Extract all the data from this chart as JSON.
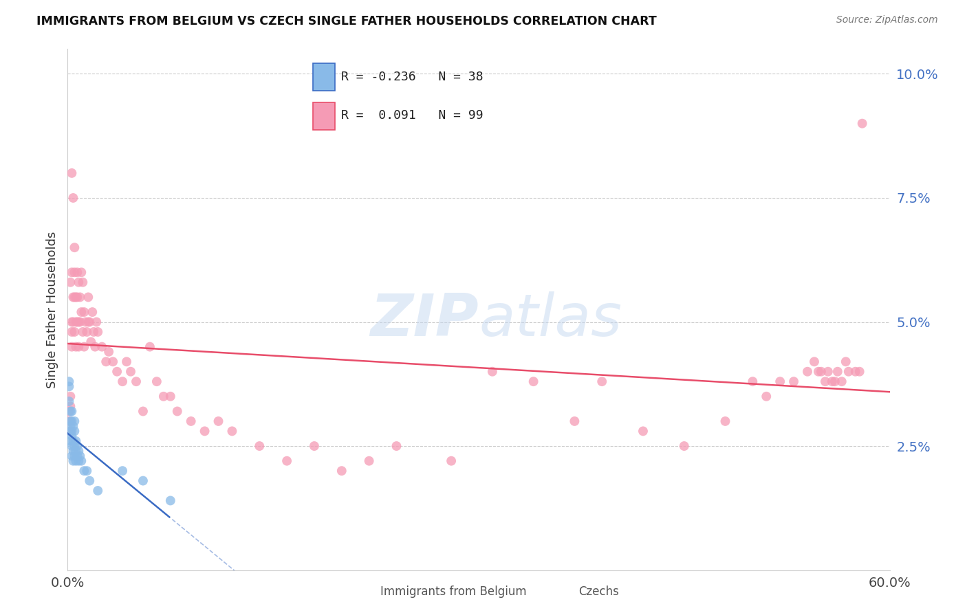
{
  "title": "IMMIGRANTS FROM BELGIUM VS CZECH SINGLE FATHER HOUSEHOLDS CORRELATION CHART",
  "source": "Source: ZipAtlas.com",
  "ylabel": "Single Father Households",
  "xlim": [
    0.0,
    0.6
  ],
  "ylim": [
    0.0,
    0.105
  ],
  "yticks": [
    0.025,
    0.05,
    0.075,
    0.1
  ],
  "ytick_labels": [
    "2.5%",
    "5.0%",
    "7.5%",
    "10.0%"
  ],
  "xtick_vals": [
    0.0,
    0.1,
    0.2,
    0.3,
    0.4,
    0.5,
    0.6
  ],
  "xtick_labels_show": [
    "0.0%",
    "",
    "",
    "",
    "",
    "",
    "60.0%"
  ],
  "legend_belgium_r": "-0.236",
  "legend_belgium_n": "38",
  "legend_czech_r": "0.091",
  "legend_czech_n": "99",
  "belgium_color": "#89BAE8",
  "czech_color": "#F59BB5",
  "belgium_line_color": "#3A6BC4",
  "czech_line_color": "#E84D6A",
  "background_color": "#FFFFFF",
  "grid_color": "#CCCCCC",
  "belgium_x": [
    0.001,
    0.001,
    0.001,
    0.002,
    0.002,
    0.002,
    0.002,
    0.002,
    0.003,
    0.003,
    0.003,
    0.003,
    0.003,
    0.003,
    0.004,
    0.004,
    0.004,
    0.004,
    0.005,
    0.005,
    0.005,
    0.005,
    0.006,
    0.006,
    0.006,
    0.007,
    0.007,
    0.008,
    0.008,
    0.009,
    0.01,
    0.012,
    0.014,
    0.016,
    0.022,
    0.04,
    0.055,
    0.075
  ],
  "belgium_y": [
    0.037,
    0.038,
    0.034,
    0.03,
    0.032,
    0.029,
    0.028,
    0.026,
    0.032,
    0.03,
    0.028,
    0.027,
    0.025,
    0.023,
    0.029,
    0.026,
    0.024,
    0.022,
    0.03,
    0.028,
    0.025,
    0.023,
    0.026,
    0.024,
    0.022,
    0.025,
    0.023,
    0.024,
    0.022,
    0.023,
    0.022,
    0.02,
    0.02,
    0.018,
    0.016,
    0.02,
    0.018,
    0.014
  ],
  "czech_x": [
    0.001,
    0.001,
    0.002,
    0.002,
    0.002,
    0.002,
    0.002,
    0.003,
    0.003,
    0.003,
    0.003,
    0.003,
    0.004,
    0.004,
    0.004,
    0.005,
    0.005,
    0.005,
    0.005,
    0.006,
    0.006,
    0.006,
    0.007,
    0.007,
    0.007,
    0.008,
    0.008,
    0.008,
    0.009,
    0.009,
    0.01,
    0.01,
    0.011,
    0.011,
    0.012,
    0.012,
    0.013,
    0.014,
    0.015,
    0.015,
    0.016,
    0.017,
    0.018,
    0.019,
    0.02,
    0.021,
    0.022,
    0.025,
    0.028,
    0.03,
    0.033,
    0.036,
    0.04,
    0.043,
    0.046,
    0.05,
    0.055,
    0.06,
    0.065,
    0.07,
    0.075,
    0.08,
    0.09,
    0.1,
    0.11,
    0.12,
    0.14,
    0.16,
    0.18,
    0.2,
    0.22,
    0.24,
    0.28,
    0.31,
    0.34,
    0.37,
    0.39,
    0.42,
    0.45,
    0.48,
    0.5,
    0.51,
    0.52,
    0.53,
    0.54,
    0.545,
    0.548,
    0.55,
    0.553,
    0.555,
    0.558,
    0.56,
    0.562,
    0.565,
    0.568,
    0.57,
    0.575,
    0.578,
    0.58
  ],
  "czech_y": [
    0.032,
    0.03,
    0.035,
    0.033,
    0.03,
    0.028,
    0.058,
    0.045,
    0.06,
    0.05,
    0.048,
    0.08,
    0.075,
    0.055,
    0.05,
    0.06,
    0.055,
    0.048,
    0.065,
    0.055,
    0.05,
    0.045,
    0.06,
    0.055,
    0.05,
    0.058,
    0.05,
    0.045,
    0.055,
    0.05,
    0.06,
    0.052,
    0.058,
    0.048,
    0.052,
    0.045,
    0.05,
    0.048,
    0.055,
    0.05,
    0.05,
    0.046,
    0.052,
    0.048,
    0.045,
    0.05,
    0.048,
    0.045,
    0.042,
    0.044,
    0.042,
    0.04,
    0.038,
    0.042,
    0.04,
    0.038,
    0.032,
    0.045,
    0.038,
    0.035,
    0.035,
    0.032,
    0.03,
    0.028,
    0.03,
    0.028,
    0.025,
    0.022,
    0.025,
    0.02,
    0.022,
    0.025,
    0.022,
    0.04,
    0.038,
    0.03,
    0.038,
    0.028,
    0.025,
    0.03,
    0.038,
    0.035,
    0.038,
    0.038,
    0.04,
    0.042,
    0.04,
    0.04,
    0.038,
    0.04,
    0.038,
    0.038,
    0.04,
    0.038,
    0.042,
    0.04,
    0.04,
    0.04,
    0.09
  ]
}
